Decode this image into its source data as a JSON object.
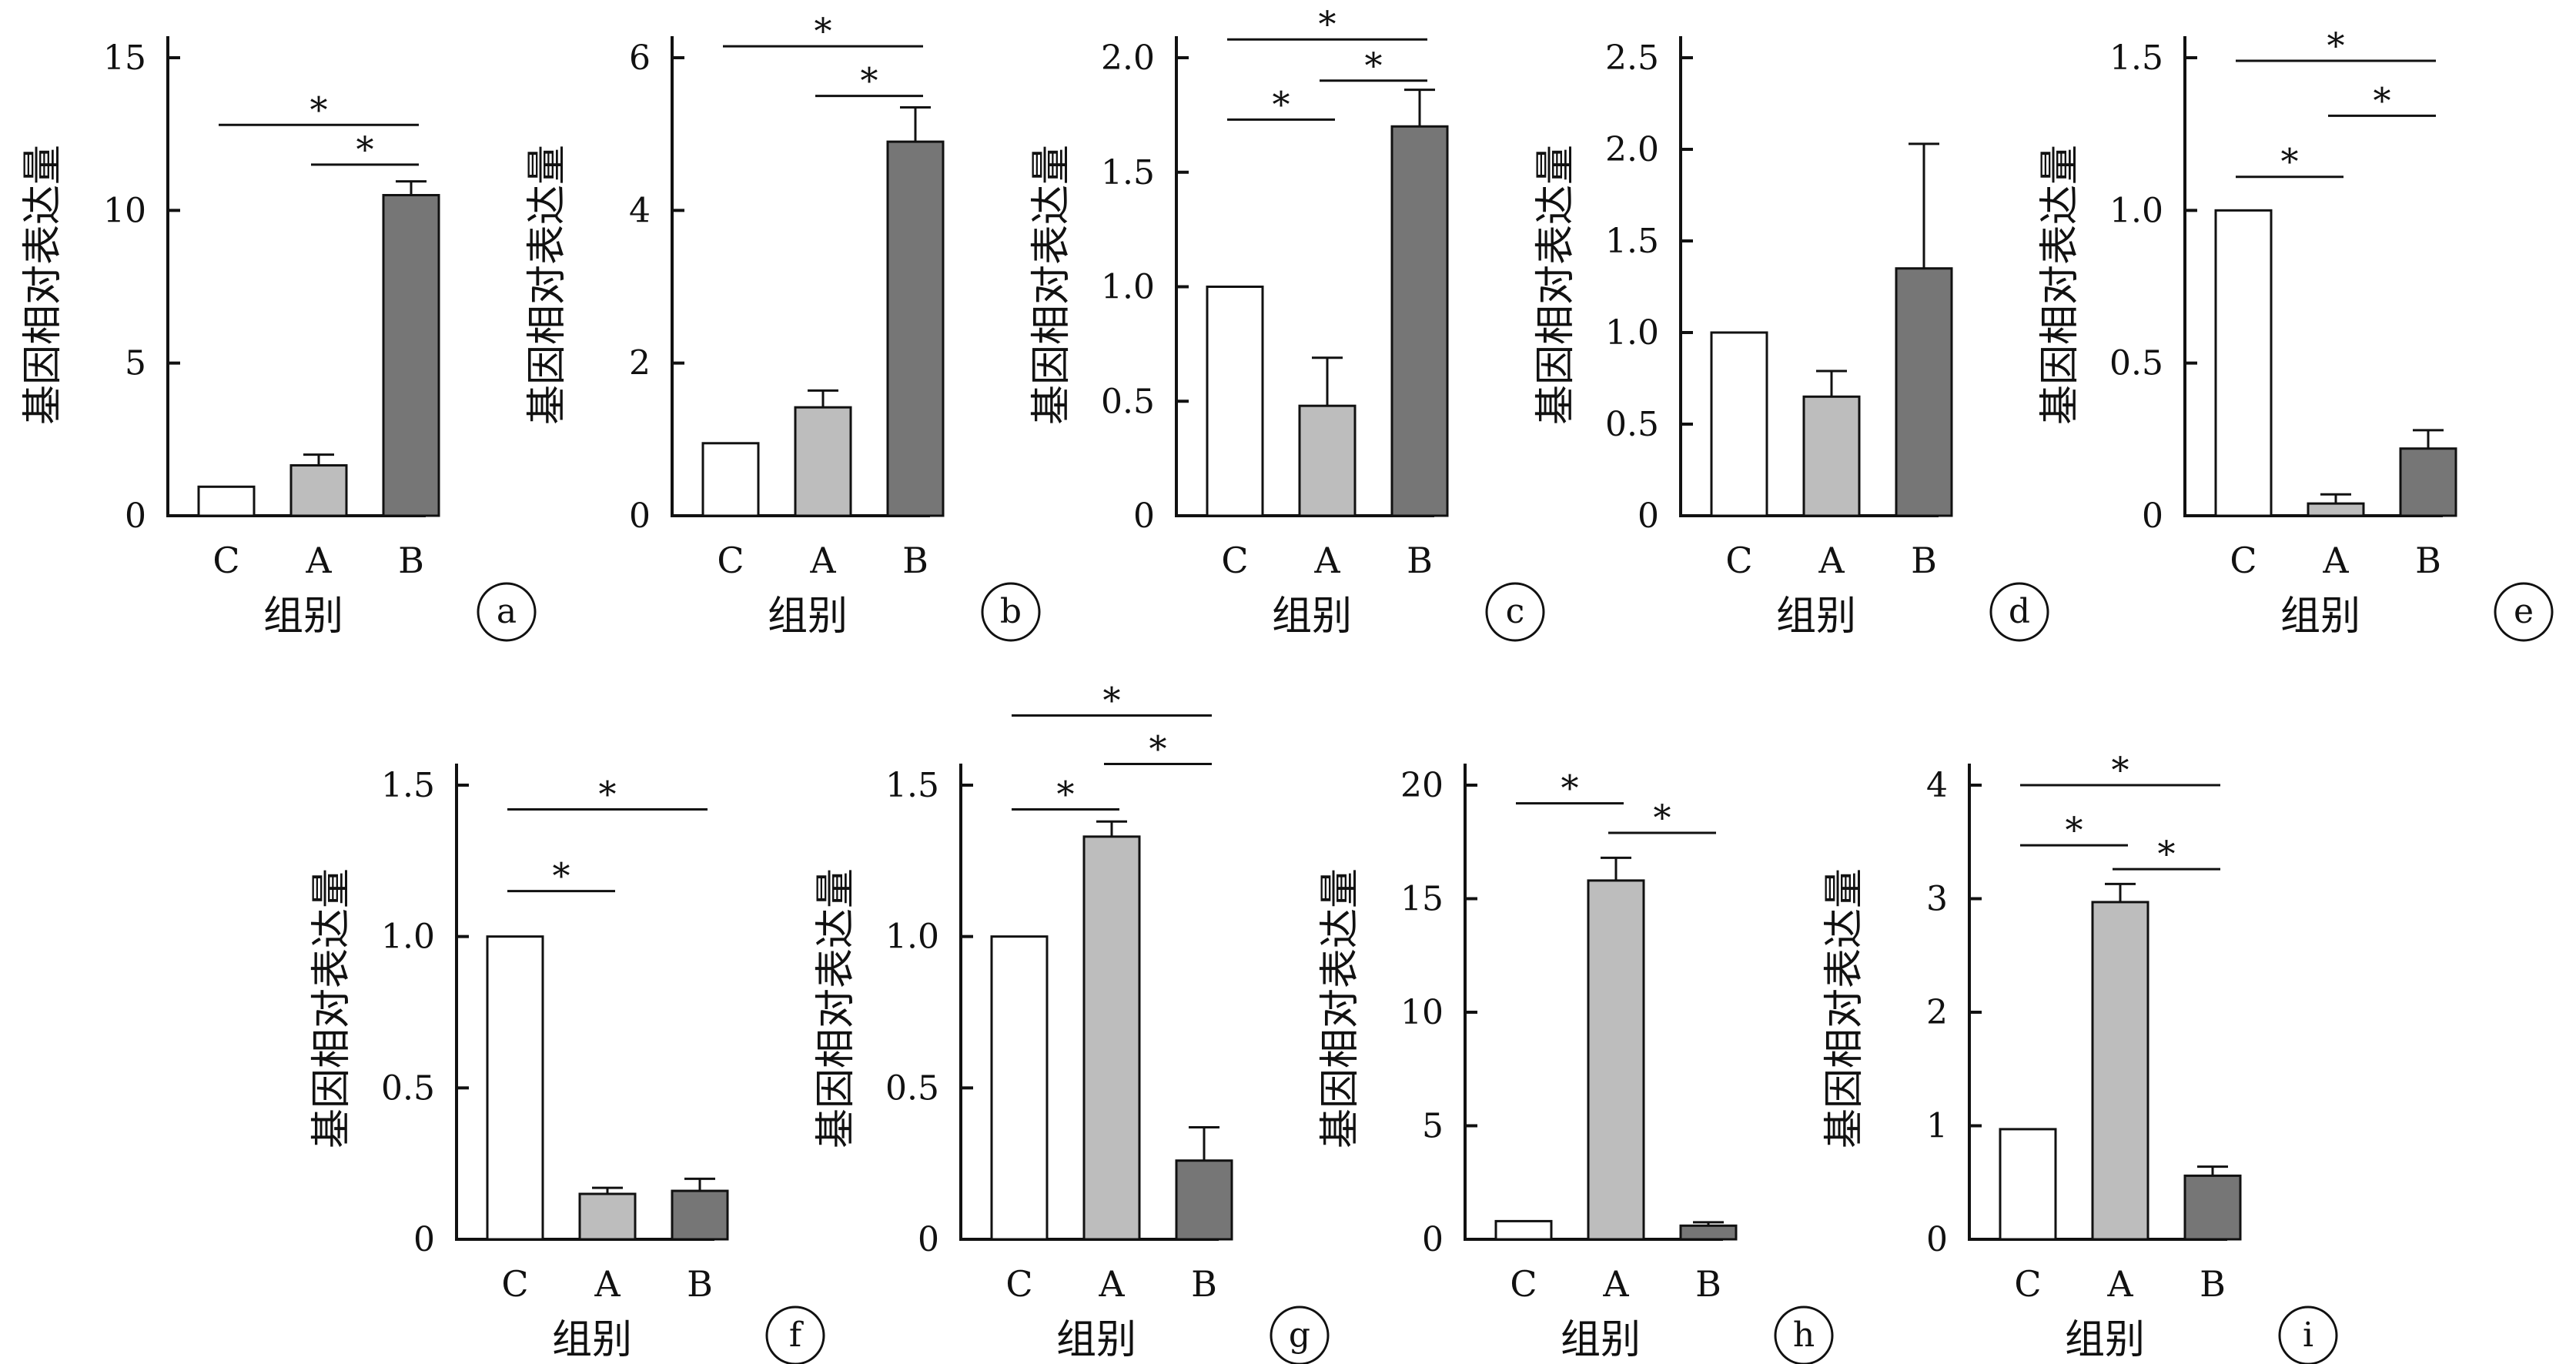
{
  "colors": {
    "C": "#ffffff",
    "A": "#bdbdbd",
    "B": "#767676"
  },
  "chart_data": [
    {
      "type": "bar",
      "panel": "a",
      "categories": [
        "C",
        "A",
        "B"
      ],
      "values": [
        0.95,
        1.65,
        10.5
      ],
      "errors": [
        0,
        0.35,
        0.45
      ],
      "ylim": [
        0,
        15
      ],
      "yticks": [
        "0",
        "5",
        "10",
        "15"
      ],
      "ytick_values": [
        0,
        5,
        10,
        15
      ],
      "xlabel": "组别",
      "ylabel": "基因相对表达量",
      "significance": [
        {
          "from": "C",
          "to": "B",
          "y": 12.8,
          "label": "*"
        },
        {
          "from": "A",
          "to": "B",
          "y": 11.5,
          "label": "*"
        }
      ]
    },
    {
      "type": "bar",
      "panel": "b",
      "categories": [
        "C",
        "A",
        "B"
      ],
      "values": [
        0.95,
        1.42,
        4.9
      ],
      "errors": [
        0,
        0.22,
        0.45
      ],
      "ylim": [
        0,
        6
      ],
      "yticks": [
        "0",
        "2",
        "4",
        "6"
      ],
      "ytick_values": [
        0,
        2,
        4,
        6
      ],
      "xlabel": "组别",
      "ylabel": "基因相对表达量",
      "significance": [
        {
          "from": "C",
          "to": "B",
          "y": 6.15,
          "label": "*"
        },
        {
          "from": "A",
          "to": "B",
          "y": 5.5,
          "label": "*"
        }
      ]
    },
    {
      "type": "bar",
      "panel": "c",
      "categories": [
        "C",
        "A",
        "B"
      ],
      "values": [
        1.0,
        0.48,
        1.7
      ],
      "errors": [
        0,
        0.21,
        0.16
      ],
      "ylim": [
        0,
        2.0
      ],
      "yticks": [
        "0",
        "0.5",
        "1.0",
        "1.5",
        "2.0"
      ],
      "ytick_values": [
        0,
        0.5,
        1.0,
        1.5,
        2.0
      ],
      "xlabel": "组别",
      "ylabel": "基因相对表达量",
      "significance": [
        {
          "from": "C",
          "to": "B",
          "y": 2.08,
          "label": "*"
        },
        {
          "from": "C",
          "to": "A",
          "y": 1.73,
          "label": "*"
        },
        {
          "from": "A",
          "to": "B",
          "y": 1.9,
          "label": "*"
        }
      ]
    },
    {
      "type": "bar",
      "panel": "d",
      "categories": [
        "C",
        "A",
        "B"
      ],
      "values": [
        1.0,
        0.65,
        1.35
      ],
      "errors": [
        0,
        0.14,
        0.68
      ],
      "ylim": [
        0,
        2.5
      ],
      "yticks": [
        "0",
        "0.5",
        "1.0",
        "1.5",
        "2.0",
        "2.5"
      ],
      "ytick_values": [
        0,
        0.5,
        1.0,
        1.5,
        2.0,
        2.5
      ],
      "xlabel": "组别",
      "ylabel": "基因相对表达量",
      "significance": []
    },
    {
      "type": "bar",
      "panel": "e",
      "categories": [
        "C",
        "A",
        "B"
      ],
      "values": [
        1.0,
        0.04,
        0.22
      ],
      "errors": [
        0,
        0.03,
        0.06
      ],
      "ylim": [
        0,
        1.5
      ],
      "yticks": [
        "0",
        "0.5",
        "1.0",
        "1.5"
      ],
      "ytick_values": [
        0,
        0.5,
        1.0,
        1.5
      ],
      "xlabel": "组别",
      "ylabel": "基因相对表达量",
      "significance": [
        {
          "from": "C",
          "to": "B",
          "y": 1.49,
          "label": "*"
        },
        {
          "from": "C",
          "to": "A",
          "y": 1.11,
          "label": "*"
        },
        {
          "from": "A",
          "to": "B",
          "y": 1.31,
          "label": "*"
        }
      ]
    },
    {
      "type": "bar",
      "panel": "f",
      "categories": [
        "C",
        "A",
        "B"
      ],
      "values": [
        1.0,
        0.15,
        0.16
      ],
      "errors": [
        0,
        0.02,
        0.04
      ],
      "ylim": [
        0,
        1.5
      ],
      "yticks": [
        "0",
        "0.5",
        "1.0",
        "1.5"
      ],
      "ytick_values": [
        0,
        0.5,
        1.0,
        1.5
      ],
      "xlabel": "组别",
      "ylabel": "基因相对表达量",
      "significance": [
        {
          "from": "C",
          "to": "B",
          "y": 1.42,
          "label": "*"
        },
        {
          "from": "C",
          "to": "A",
          "y": 1.15,
          "label": "*"
        }
      ]
    },
    {
      "type": "bar",
      "panel": "g",
      "categories": [
        "C",
        "A",
        "B"
      ],
      "values": [
        1.0,
        1.33,
        0.26
      ],
      "errors": [
        0,
        0.05,
        0.11
      ],
      "ylim": [
        0,
        1.5
      ],
      "yticks": [
        "0",
        "0.5",
        "1.0",
        "1.5"
      ],
      "ytick_values": [
        0,
        0.5,
        1.0,
        1.5
      ],
      "xlabel": "组别",
      "ylabel": "基因相对表达量",
      "significance": [
        {
          "from": "C",
          "to": "B",
          "y": 1.73,
          "label": "*"
        },
        {
          "from": "C",
          "to": "A",
          "y": 1.42,
          "label": "*"
        },
        {
          "from": "A",
          "to": "B",
          "y": 1.57,
          "label": "*"
        }
      ]
    },
    {
      "type": "bar",
      "panel": "h",
      "categories": [
        "C",
        "A",
        "B"
      ],
      "values": [
        0.8,
        15.8,
        0.6
      ],
      "errors": [
        0,
        1.0,
        0.15
      ],
      "ylim": [
        0,
        20
      ],
      "yticks": [
        "0",
        "5",
        "10",
        "15",
        "20"
      ],
      "ytick_values": [
        0,
        5,
        10,
        15,
        20
      ],
      "xlabel": "组别",
      "ylabel": "基因相对表达量",
      "significance": [
        {
          "from": "C",
          "to": "A",
          "y": 19.2,
          "label": "*"
        },
        {
          "from": "A",
          "to": "B",
          "y": 17.9,
          "label": "*"
        }
      ]
    },
    {
      "type": "bar",
      "panel": "i",
      "categories": [
        "C",
        "A",
        "B"
      ],
      "values": [
        0.97,
        2.97,
        0.56
      ],
      "errors": [
        0,
        0.16,
        0.08
      ],
      "ylim": [
        0,
        4
      ],
      "yticks": [
        "0",
        "1",
        "2",
        "3",
        "4"
      ],
      "ytick_values": [
        0,
        1,
        2,
        3,
        4
      ],
      "xlabel": "组别",
      "ylabel": "基因相对表达量",
      "significance": [
        {
          "from": "C",
          "to": "B",
          "y": 4.0,
          "label": "*"
        },
        {
          "from": "C",
          "to": "A",
          "y": 3.47,
          "label": "*"
        },
        {
          "from": "A",
          "to": "B",
          "y": 3.26,
          "label": "*"
        }
      ]
    }
  ]
}
